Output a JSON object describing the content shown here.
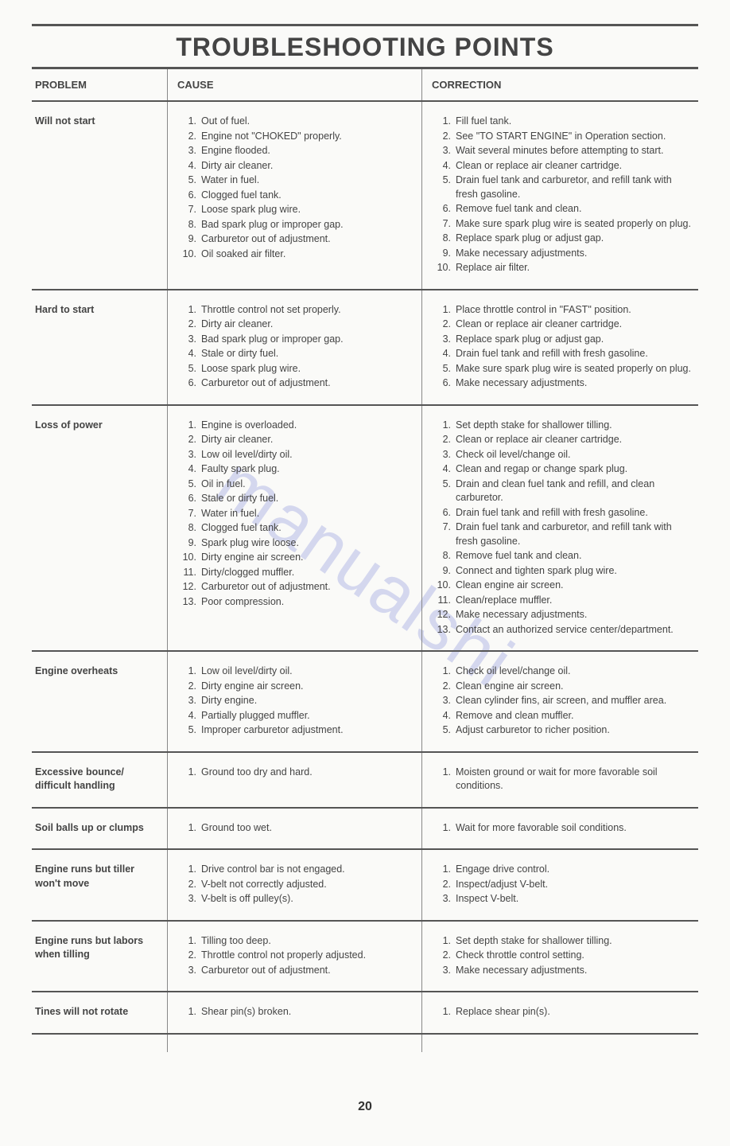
{
  "watermark": "manualshi",
  "title": "TROUBLESHOOTING POINTS",
  "headers": {
    "problem": "PROBLEM",
    "cause": "CAUSE",
    "correction": "CORRECTION"
  },
  "pageNumber": "20",
  "sections": [
    {
      "problem": "Will not start",
      "causes": [
        "Out of fuel.",
        "Engine not \"CHOKED\" properly.",
        "Engine flooded.",
        "Dirty air cleaner.",
        "Water in fuel.",
        "Clogged fuel tank.",
        "Loose spark plug wire.",
        "Bad spark plug or improper gap.",
        "Carburetor out of adjustment.",
        "Oil soaked air filter."
      ],
      "corrections": [
        "Fill fuel tank.",
        "See \"TO START ENGINE\" in Operation section.",
        "Wait several minutes before attempting to start.",
        "Clean or replace air cleaner cartridge.",
        "Drain fuel tank and carburetor, and refill tank with fresh gasoline.",
        "Remove fuel tank and clean.",
        "Make sure spark plug wire is seated properly on plug.",
        "Replace spark plug or adjust gap.",
        "Make necessary adjustments.",
        "Replace air filter."
      ]
    },
    {
      "problem": "Hard to start",
      "causes": [
        "Throttle control not set properly.",
        "Dirty air  cleaner.",
        "Bad spark plug or improper gap.",
        "Stale or dirty fuel.",
        "Loose spark plug wire.",
        "Carburetor out of adjustment."
      ],
      "corrections": [
        "Place throttle control in \"FAST\" position.",
        "Clean or replace air cleaner cartridge.",
        "Replace spark plug or adjust gap.",
        "Drain fuel tank and refill with fresh gasoline.",
        "Make sure spark plug wire is seated properly on plug.",
        "Make necessary adjustments."
      ]
    },
    {
      "problem": "Loss of power",
      "causes": [
        "Engine is overloaded.",
        "Dirty air cleaner.",
        "Low oil level/dirty oil.",
        "Faulty spark plug.",
        "Oil in fuel.",
        "Stale or dirty fuel.",
        "Water in fuel.",
        "Clogged fuel tank.",
        "Spark plug wire loose.",
        "Dirty engine air screen.",
        "Dirty/clogged muffler.",
        "Carburetor out of adjustment.",
        "Poor compression."
      ],
      "corrections": [
        "Set depth stake for shallower tilling.",
        "Clean or replace air cleaner cartridge.",
        "Check oil level/change oil.",
        "Clean and regap or change spark plug.",
        "Drain and clean fuel tank and refill, and clean carburetor.",
        "Drain fuel tank and refill with fresh gasoline.",
        "Drain fuel tank and carburetor, and refill tank with fresh gasoline.",
        "Remove fuel tank and clean.",
        "Connect and tighten spark plug wire.",
        "Clean engine air screen.",
        "Clean/replace muffler.",
        "Make necessary adjustments.",
        "Contact an authorized service center/department."
      ]
    },
    {
      "problem": "Engine overheats",
      "causes": [
        "Low oil level/dirty oil.",
        "Dirty engine air screen.",
        "Dirty engine.",
        "Partially plugged muffler.",
        "Improper carburetor adjustment."
      ],
      "corrections": [
        "Check oil level/change oil.",
        "Clean engine air screen.",
        "Clean cylinder fins, air screen, and muffler area.",
        "Remove and clean muffler.",
        "Adjust carburetor to richer position."
      ]
    },
    {
      "problem": "Excessive bounce/ difficult handling",
      "causes": [
        "Ground too dry and hard."
      ],
      "corrections": [
        "Moisten ground or wait for more favorable soil conditions."
      ]
    },
    {
      "problem": "Soil balls up or clumps",
      "causes": [
        "Ground too wet."
      ],
      "corrections": [
        "Wait for more favorable soil conditions."
      ]
    },
    {
      "problem": "Engine runs but  tiller won't  move",
      "causes": [
        "Drive control bar is not engaged.",
        "V-belt not correctly adjusted.",
        "V-belt is off pulley(s)."
      ],
      "corrections": [
        "Engage drive control.",
        "Inspect/adjust V-belt.",
        "Inspect V-belt."
      ]
    },
    {
      "problem": "Engine runs but  labors when tilling",
      "causes": [
        "Tilling too deep.",
        "Throttle control not properly adjusted.",
        "Carburetor out of adjustment."
      ],
      "corrections": [
        "Set depth stake for shallower tilling.",
        "Check throttle control setting.",
        "Make necessary adjustments."
      ]
    },
    {
      "problem": "Tines will not rotate",
      "causes": [
        "Shear pin(s) broken."
      ],
      "corrections": [
        "Replace shear pin(s)."
      ]
    }
  ]
}
